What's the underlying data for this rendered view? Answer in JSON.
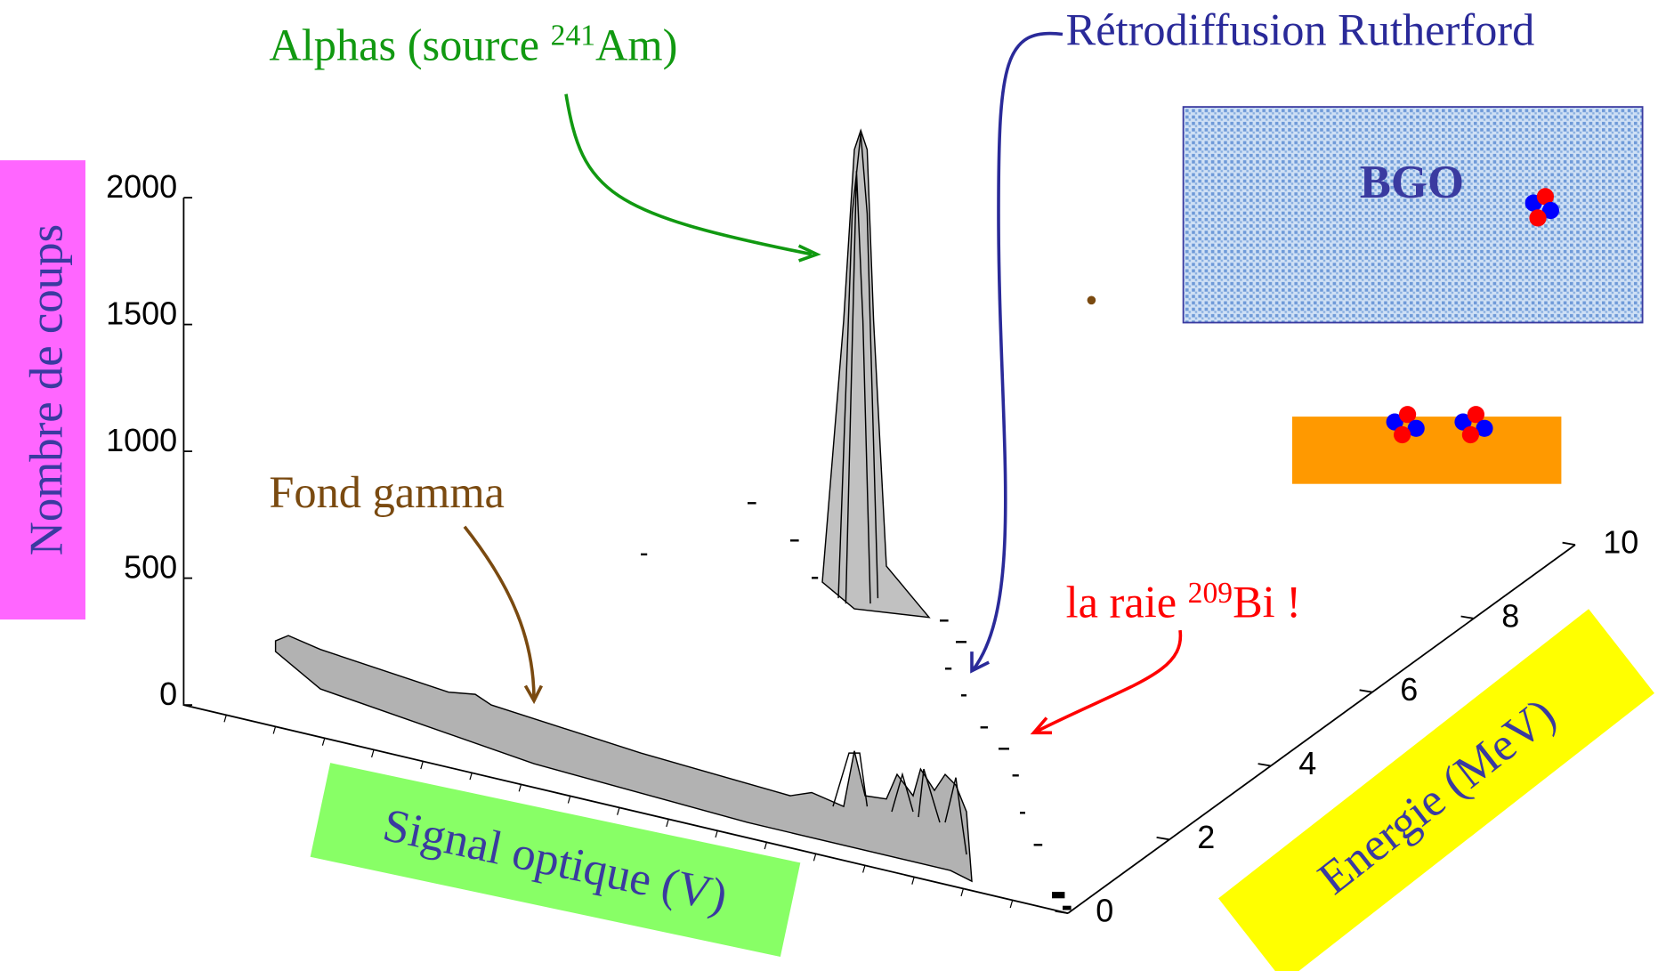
{
  "chart_data": {
    "type": "surface",
    "zlabel": "Nombre de coups",
    "xlabel": "Signal optique (V)",
    "ylabel": "Energie (MeV)",
    "zlim": [
      0,
      2000
    ],
    "zticks": [
      0,
      500,
      1000,
      1500,
      2000
    ],
    "ylim": [
      0,
      10
    ],
    "yticks": [
      0,
      2,
      4,
      6,
      8,
      10
    ],
    "annotations": [
      {
        "text": "Alphas (source ",
        "sup": "241",
        "post": "Am)"
      },
      {
        "text": "Rétrodiffusion Rutherford"
      },
      {
        "text": "Fond gamma"
      },
      {
        "text": "la raie ",
        "sup": "209",
        "post": "Bi !"
      }
    ],
    "inset_label": "BGO"
  }
}
